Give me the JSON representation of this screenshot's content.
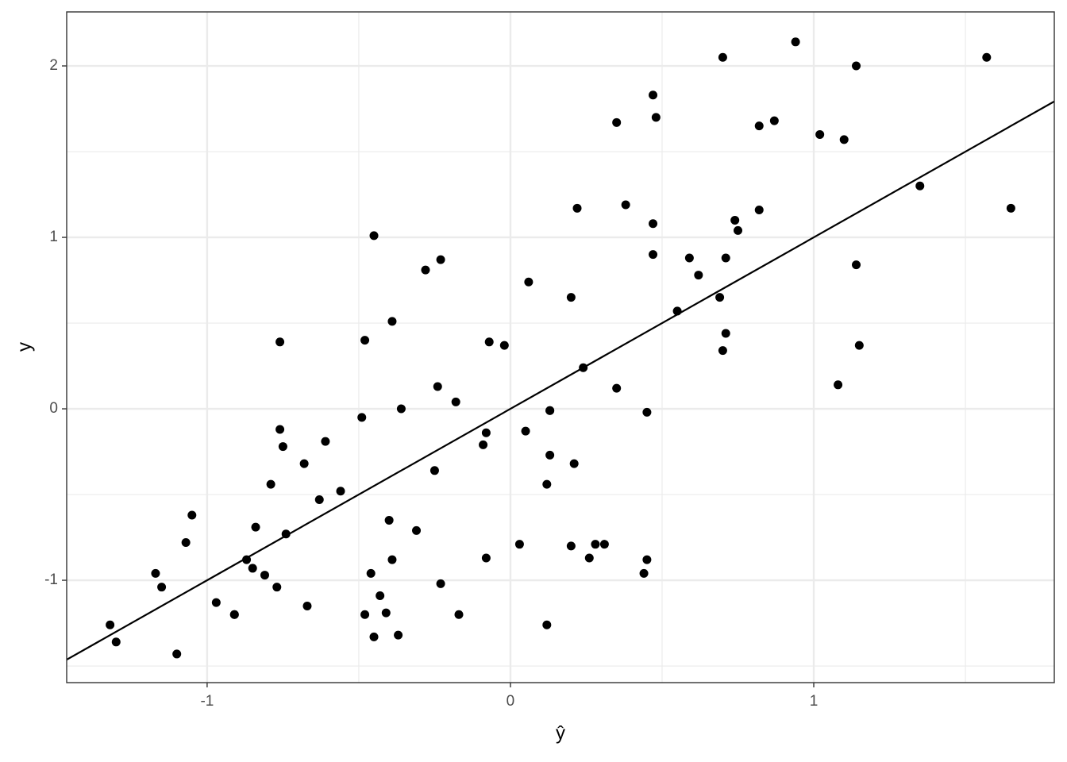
{
  "chart_data": {
    "type": "scatter",
    "x_label": "ŷ",
    "y_label": "y",
    "color": "#000000",
    "xlim": [
      -1.463,
      1.793
    ],
    "ylim": [
      -1.597,
      2.315
    ],
    "xticks": [
      -1,
      0,
      1
    ],
    "yticks": [
      -1,
      0,
      1,
      2
    ],
    "minor_xticks": [
      -0.5,
      0.5,
      1.5
    ],
    "minor_yticks": [
      -1.5,
      -0.5,
      0.5,
      1.5
    ],
    "grid": true,
    "reference_line": {
      "slope": 1,
      "intercept": 0,
      "color": "#000000"
    },
    "x": [
      -1.32,
      -1.3,
      -1.17,
      -1.15,
      -1.1,
      -1.07,
      -1.05,
      -0.97,
      -0.91,
      -0.91,
      -0.87,
      -0.85,
      -0.84,
      -0.81,
      -0.79,
      -0.77,
      -0.76,
      -0.76,
      -0.75,
      -0.74,
      -0.68,
      -0.67,
      -0.63,
      -0.61,
      -0.56,
      -0.49,
      -0.48,
      -0.48,
      -0.46,
      -0.45,
      -0.45,
      -0.43,
      -0.41,
      -0.4,
      -0.39,
      -0.39,
      -0.37,
      -0.36,
      -0.31,
      -0.28,
      -0.25,
      -0.24,
      -0.23,
      -0.23,
      -0.18,
      -0.17,
      -0.09,
      -0.08,
      -0.08,
      -0.07,
      -0.02,
      0.03,
      0.05,
      0.06,
      0.12,
      0.12,
      0.13,
      0.13,
      0.13,
      0.2,
      0.2,
      0.21,
      0.22,
      0.24,
      0.26,
      0.28,
      0.31,
      0.35,
      0.35,
      0.38,
      0.44,
      0.45,
      0.45,
      0.47,
      0.47,
      0.47,
      0.48,
      0.55,
      0.59,
      0.62,
      0.69,
      0.7,
      0.7,
      0.71,
      0.71,
      0.74,
      0.75,
      0.82,
      0.82,
      0.87,
      0.94,
      1.02,
      1.08,
      1.1,
      1.14,
      1.14,
      1.15,
      1.35,
      1.57,
      1.65
    ],
    "y": [
      -1.26,
      -1.36,
      -0.96,
      -1.04,
      -1.43,
      -0.78,
      -0.62,
      -1.13,
      -1.2,
      -1.2,
      -0.88,
      -0.93,
      -0.69,
      -0.97,
      -0.44,
      -1.04,
      0.39,
      -0.12,
      -0.22,
      -0.73,
      -0.32,
      -1.15,
      -0.53,
      -0.19,
      -0.48,
      -0.05,
      -1.2,
      0.4,
      -0.96,
      1.01,
      -1.33,
      -1.09,
      -1.19,
      -0.65,
      0.51,
      -0.88,
      -1.32,
      0.0,
      -0.71,
      0.81,
      -0.36,
      0.13,
      -1.02,
      0.87,
      0.04,
      -1.2,
      -0.21,
      -0.14,
      -0.87,
      0.39,
      0.37,
      -0.79,
      -0.13,
      0.74,
      -1.26,
      -0.44,
      -0.01,
      -0.01,
      -0.27,
      0.65,
      -0.8,
      -0.32,
      1.17,
      0.24,
      -0.87,
      -0.79,
      -0.79,
      0.12,
      1.67,
      1.19,
      -0.96,
      -0.02,
      -0.88,
      1.83,
      1.08,
      0.9,
      1.7,
      0.57,
      0.88,
      0.78,
      0.65,
      0.34,
      2.05,
      0.88,
      0.44,
      1.1,
      1.04,
      1.65,
      1.16,
      1.68,
      2.14,
      1.6,
      0.14,
      1.57,
      2.0,
      0.84,
      0.37,
      1.3,
      2.05,
      1.17
    ]
  }
}
